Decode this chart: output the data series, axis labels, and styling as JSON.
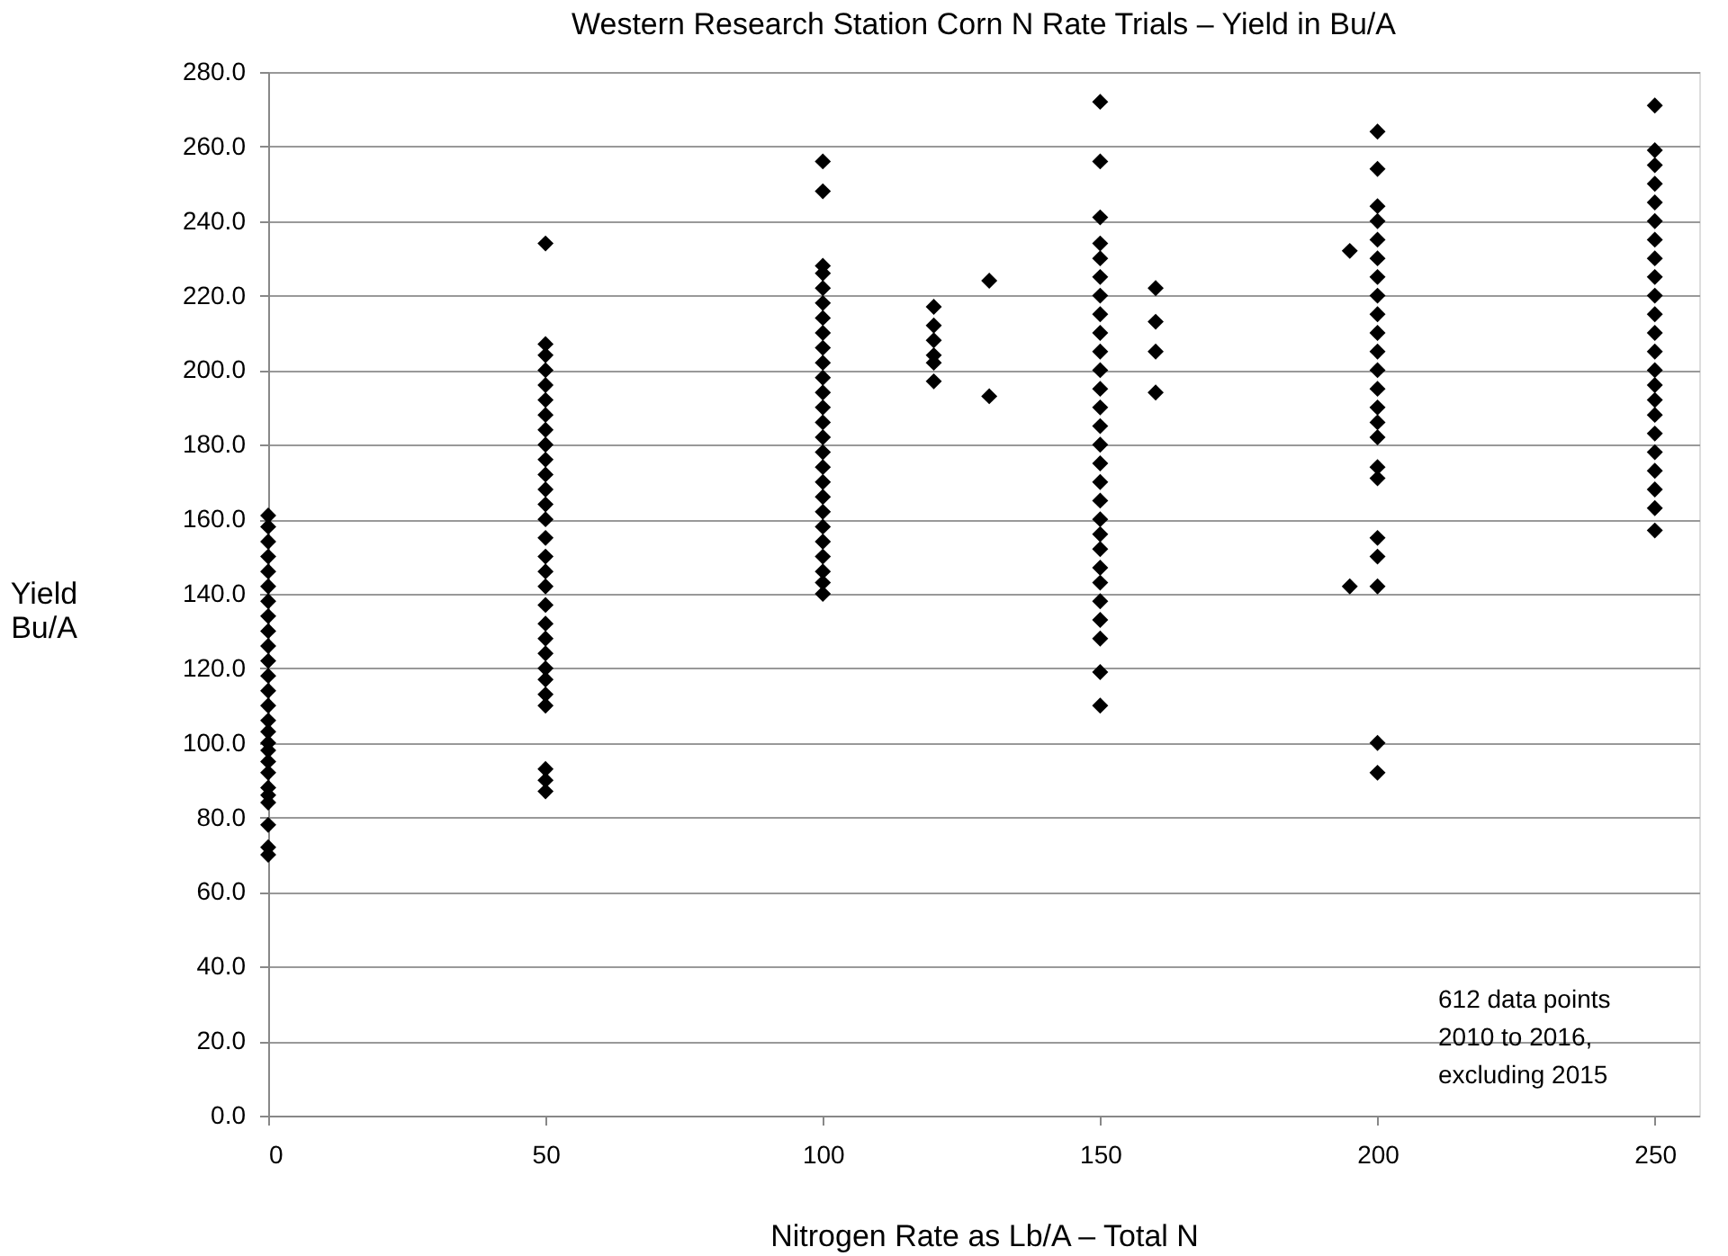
{
  "chart_data": {
    "type": "scatter",
    "title": "Western Research Station Corn N Rate Trials – Yield in Bu/A",
    "xlabel": "Nitrogen Rate as Lb/A – Total N",
    "ylabel": "Yield Bu/A",
    "series": [
      {
        "color": "#000000",
        "x": [
          0,
          0,
          0,
          0,
          0,
          0,
          0,
          0,
          0,
          0,
          0,
          0,
          0,
          0,
          0,
          0,
          0,
          0,
          0,
          0,
          0,
          0,
          0,
          0,
          0,
          0,
          50,
          50,
          50,
          50,
          50,
          50,
          50,
          50,
          50,
          50,
          50,
          50,
          50,
          50,
          50,
          50,
          50,
          50,
          50,
          50,
          50,
          50,
          50,
          50,
          50,
          50,
          50,
          50,
          50,
          100,
          100,
          100,
          100,
          100,
          100,
          100,
          100,
          100,
          100,
          100,
          100,
          100,
          100,
          100,
          100,
          100,
          100,
          100,
          100,
          100,
          100,
          100,
          100,
          100,
          100,
          120,
          120,
          120,
          120,
          120,
          120,
          130,
          130,
          150,
          150,
          150,
          150,
          150,
          150,
          150,
          150,
          150,
          150,
          150,
          150,
          150,
          150,
          150,
          150,
          150,
          150,
          150,
          150,
          150,
          150,
          150,
          150,
          150,
          150,
          150,
          150,
          160,
          160,
          160,
          160,
          195,
          195,
          200,
          200,
          200,
          200,
          200,
          200,
          200,
          200,
          200,
          200,
          200,
          200,
          200,
          200,
          200,
          200,
          200,
          200,
          200,
          200,
          200,
          200,
          200,
          250,
          250,
          250,
          250,
          250,
          250,
          250,
          250,
          250,
          250,
          250,
          250,
          250,
          250,
          250,
          250,
          250,
          250,
          250,
          250,
          250,
          250,
          250
        ],
        "values": [
          70,
          72,
          78,
          84,
          86,
          88,
          92,
          95,
          98,
          100,
          103,
          106,
          110,
          114,
          118,
          122,
          126,
          130,
          134,
          138,
          142,
          146,
          150,
          154,
          158,
          161,
          87,
          90,
          93,
          110,
          113,
          117,
          120,
          124,
          128,
          132,
          137,
          142,
          146,
          150,
          155,
          160,
          164,
          168,
          172,
          176,
          180,
          184,
          188,
          192,
          196,
          200,
          204,
          207,
          234,
          140,
          143,
          146,
          150,
          154,
          158,
          162,
          166,
          170,
          174,
          178,
          182,
          186,
          190,
          194,
          198,
          202,
          206,
          210,
          214,
          218,
          222,
          226,
          228,
          248,
          256,
          197,
          202,
          204,
          208,
          212,
          217,
          193,
          224,
          110,
          119,
          128,
          133,
          138,
          143,
          147,
          152,
          156,
          160,
          165,
          170,
          175,
          180,
          185,
          190,
          195,
          200,
          205,
          210,
          215,
          220,
          225,
          230,
          234,
          241,
          256,
          272,
          194,
          205,
          213,
          222,
          142,
          232,
          92,
          100,
          142,
          150,
          155,
          171,
          174,
          182,
          186,
          190,
          195,
          200,
          205,
          210,
          215,
          220,
          225,
          230,
          235,
          240,
          244,
          254,
          264,
          157,
          163,
          168,
          173,
          178,
          183,
          188,
          192,
          196,
          200,
          205,
          210,
          215,
          220,
          225,
          230,
          235,
          240,
          245,
          250,
          255,
          259,
          271
        ]
      }
    ],
    "marker": "diamond",
    "grid": "y",
    "xlim": [
      0,
      258
    ],
    "xticks": [
      0,
      50,
      100,
      150,
      200,
      250
    ],
    "ylim": [
      0,
      280
    ],
    "yticks": [
      {
        "value": 0,
        "label": "0.0"
      },
      {
        "value": 20,
        "label": "20.0"
      },
      {
        "value": 40,
        "label": "40.0"
      },
      {
        "value": 60,
        "label": "60.0"
      },
      {
        "value": 80,
        "label": "80.0"
      },
      {
        "value": 100,
        "label": "100.0"
      },
      {
        "value": 120,
        "label": "120.0"
      },
      {
        "value": 140,
        "label": "140.0"
      },
      {
        "value": 160,
        "label": "160.0"
      },
      {
        "value": 180,
        "label": "180.0"
      },
      {
        "value": 200,
        "label": "200.0"
      },
      {
        "value": 220,
        "label": "220.0"
      },
      {
        "value": 240,
        "label": "240.0"
      },
      {
        "value": 260,
        "label": "260.0"
      },
      {
        "value": 280,
        "label": "280.0"
      }
    ],
    "annotations": [
      "612 data points",
      "2010 to 2016,",
      "excluding 2015"
    ]
  }
}
